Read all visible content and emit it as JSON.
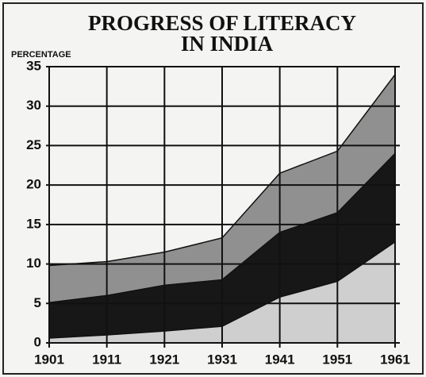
{
  "chart_data": {
    "type": "area",
    "title": [
      "PROGRESS OF LITERACY",
      "IN INDIA"
    ],
    "y_label": "PERCENTAGE",
    "x": [
      1901,
      1911,
      1921,
      1931,
      1941,
      1951,
      1961
    ],
    "xlim": [
      1901,
      1961
    ],
    "xticks": [
      1901,
      1911,
      1921,
      1931,
      1941,
      1951,
      1961
    ],
    "ylim": [
      0,
      35
    ],
    "yticks": [
      0,
      5,
      10,
      15,
      20,
      25,
      30,
      35
    ],
    "grid": true,
    "series": [
      {
        "color": "#8a8a8a",
        "values": [
          9.8,
          10.3,
          11.5,
          13.3,
          21.5,
          24.3,
          34
        ]
      },
      {
        "color": "#111111",
        "values": [
          5.1,
          6,
          7.3,
          8,
          14,
          16.5,
          24
        ]
      },
      {
        "color": "#d9d9d9",
        "values": [
          0.6,
          1,
          1.5,
          2.1,
          5.8,
          7.8,
          12.8
        ]
      }
    ]
  }
}
